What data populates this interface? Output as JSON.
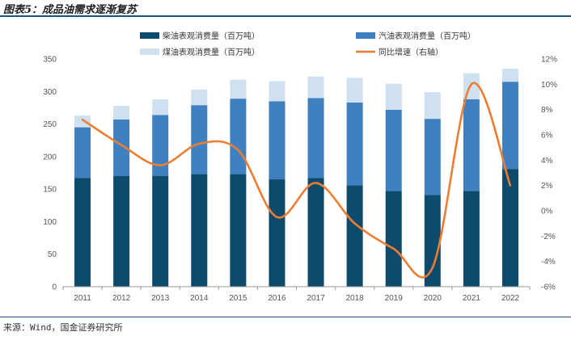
{
  "figure": {
    "title": "图表5：成品油需求逐渐复苏",
    "source": "来源：Wind，国金证券研究所"
  },
  "colors": {
    "diesel": "#0e4a6b",
    "gasoline": "#3f80c0",
    "kerosene": "#cfe0f1",
    "growth": "#ed7d31",
    "axis": "#9a9a9a",
    "rule": "#1f4e79"
  },
  "chart_data": {
    "type": "bar",
    "title": "",
    "categories": [
      "2011",
      "2012",
      "2013",
      "2014",
      "2015",
      "2016",
      "2017",
      "2018",
      "2019",
      "2020",
      "2021",
      "2022"
    ],
    "stacked": true,
    "series": [
      {
        "name": "柴油表观消费量（百万吨）",
        "values": [
          167,
          170,
          170,
          173,
          173,
          165,
          167,
          156,
          147,
          141,
          147,
          181
        ]
      },
      {
        "name": "汽油表观消费量（百万吨）",
        "values": [
          78,
          87,
          94,
          106,
          116,
          120,
          123,
          127,
          125,
          117,
          141,
          134
        ]
      },
      {
        "name": "煤油表观消费量（百万吨）",
        "values": [
          18,
          21,
          24,
          24,
          29,
          31,
          33,
          38,
          40,
          41,
          40,
          20
        ]
      }
    ],
    "line_series": {
      "name": "同比增速（右轴）",
      "values": [
        7.2,
        5.2,
        3.6,
        5.3,
        4.8,
        -0.5,
        2.2,
        -1.0,
        -3.0,
        -4.5,
        10.0,
        2.0
      ],
      "unit": "%"
    },
    "y_left": {
      "ylim": [
        0,
        350
      ],
      "ticks": [
        "0",
        "50",
        "100",
        "150",
        "200",
        "250",
        "300",
        "350"
      ]
    },
    "y_right": {
      "ylim": [
        -6,
        12
      ],
      "ticks": [
        "-6%",
        "-4%",
        "-2%",
        "0%",
        "2%",
        "4%",
        "6%",
        "8%",
        "10%",
        "12%"
      ]
    },
    "legend": {
      "placement": "top",
      "items": [
        {
          "label": "柴油表观消费量（百万吨）",
          "kind": "bar",
          "color_key": "diesel"
        },
        {
          "label": "汽油表观消费量（百万吨）",
          "kind": "bar",
          "color_key": "gasoline"
        },
        {
          "label": "煤油表观消费量（百万吨）",
          "kind": "bar",
          "color_key": "kerosene"
        },
        {
          "label": "同比增速（右轴）",
          "kind": "line",
          "color_key": "growth"
        }
      ]
    }
  }
}
